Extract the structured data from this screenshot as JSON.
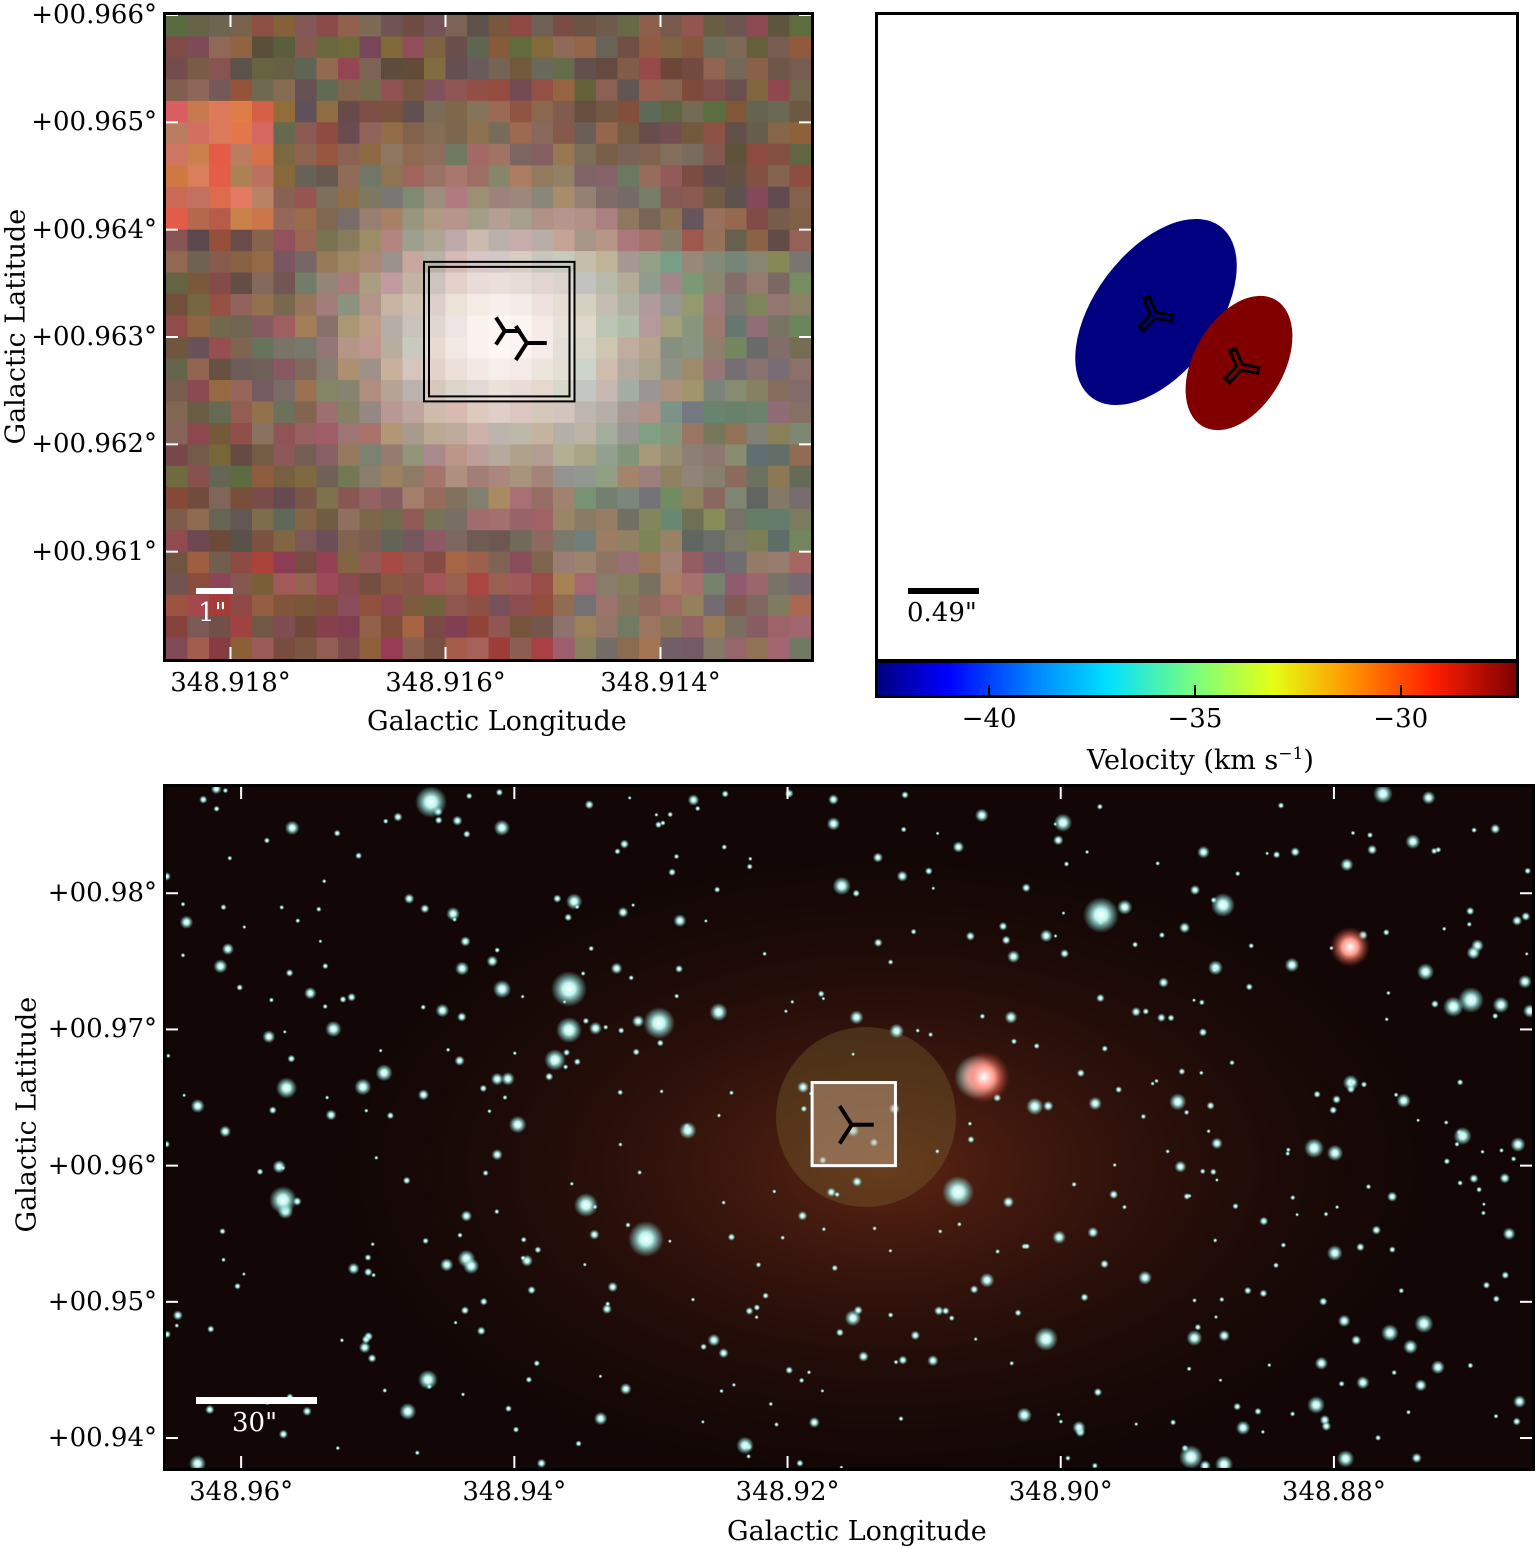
{
  "chart_data": [
    {
      "type": "image",
      "panel": "top-left",
      "xlabel": "Galactic Longitude",
      "ylabel": "Galactic Latitude",
      "xticks": [
        "348.918°",
        "348.916°",
        "348.914°"
      ],
      "xtick_values": [
        348.918,
        348.916,
        348.914
      ],
      "xlim": [
        348.9186,
        348.9126
      ],
      "yticks": [
        "+00.966°",
        "+00.965°",
        "+00.964°",
        "+00.963°",
        "+00.962°",
        "+00.961°"
      ],
      "ytick_values": [
        0.966,
        0.965,
        0.964,
        0.963,
        0.962,
        0.961
      ],
      "ylim": [
        0.96,
        0.966
      ],
      "scalebar_label": "1\"",
      "marker": {
        "l": 348.9153,
        "b": 0.963
      },
      "box": {
        "l": [
          348.9162,
          348.9148
        ],
        "b": [
          0.9624,
          0.9637
        ]
      }
    },
    {
      "type": "ellipse_map",
      "panel": "top-right",
      "scalebar_label": "0.49\"",
      "colorbar": {
        "label": "Velocity (km s",
        "label_exponent": "−1",
        "label_suffix": ")",
        "ticks": [
          "−40",
          "−35",
          "−30"
        ],
        "tick_values": [
          -40,
          -35,
          -30
        ],
        "range": [
          -42.7,
          -27.2
        ]
      },
      "components": [
        {
          "velocity": -42,
          "color": "#000080"
        },
        {
          "velocity": -28,
          "color": "#800000"
        }
      ]
    },
    {
      "type": "image",
      "panel": "bottom",
      "xlabel": "Galactic Longitude",
      "ylabel": "Galactic Latitude",
      "xticks": [
        "348.96°",
        "348.94°",
        "348.92°",
        "348.90°",
        "348.88°"
      ],
      "xtick_values": [
        348.96,
        348.94,
        348.92,
        348.9,
        348.88
      ],
      "xlim": [
        348.9655,
        348.8655
      ],
      "yticks": [
        "+00.98°",
        "+00.97°",
        "+00.96°",
        "+00.95°",
        "+00.94°"
      ],
      "ytick_values": [
        0.98,
        0.97,
        0.96,
        0.95,
        0.94
      ],
      "ylim": [
        0.9378,
        0.9878
      ],
      "scalebar_label": "30\"",
      "marker": {
        "l": 348.9153,
        "b": 0.963
      },
      "box": {
        "l": [
          348.9182,
          348.9121
        ],
        "b": [
          0.96,
          0.9661
        ]
      }
    }
  ]
}
